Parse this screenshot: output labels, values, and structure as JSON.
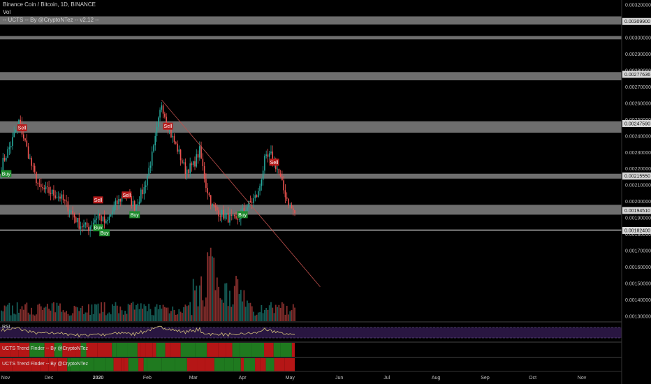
{
  "legend": {
    "symbol_line": "Binance Coin / Bitcoin, 1D, BINANCE",
    "vol_label": "Vol",
    "indicator_line": "-- UCTS -- By @CryptoNTez -- v2.12 --"
  },
  "panels": {
    "rsi_label": "RSI",
    "trend1_label": "UCTS Trend Finder -- By @CryptoNTez",
    "trend2_label": "UCTS Trend Finder -- By @CryptoNTez"
  },
  "colors": {
    "background": "#000000",
    "up": "#26a69a",
    "down": "#ef5350",
    "zone": "#c8c8c8",
    "trendline": "#c0504d",
    "rsi_line": "#d4c27a",
    "rsi_band": "#3a1f5c",
    "buy": "#1e8c2e",
    "sell": "#b71c1c",
    "trend_green": "#1f7a1f",
    "trend_red": "#b51616"
  },
  "chart_data": {
    "type": "candlestick",
    "title": "Binance Coin / Bitcoin, 1D, BINANCE",
    "x_ticks": [
      "Nov",
      "Dec",
      "2020",
      "Feb",
      "Mar",
      "Apr",
      "May",
      "Jun",
      "Jul",
      "Aug",
      "Sep",
      "Oct",
      "Nov"
    ],
    "y_ticks": [
      "0.00320000",
      "0.00310000",
      "0.00300000",
      "0.00290000",
      "0.00280000",
      "0.00270000",
      "0.00260000",
      "0.00250000",
      "0.00240000",
      "0.00230000",
      "0.00220000",
      "0.00210000",
      "0.00200000",
      "0.00190000",
      "0.00180000",
      "0.00170000",
      "0.00160000",
      "0.00150000",
      "0.00140000",
      "0.00130000"
    ],
    "ylim": [
      0.00127,
      0.00323
    ],
    "price_labels": [
      "0.00309900",
      "0.00277636",
      "0.00247590",
      "0.00215550",
      "0.00194510",
      "0.00182400"
    ],
    "zones": [
      {
        "low": 0.00308,
        "high": 0.00313
      },
      {
        "low": 0.00299,
        "high": 0.00301
      },
      {
        "low": 0.00274,
        "high": 0.00279
      },
      {
        "low": 0.00242,
        "high": 0.00249
      },
      {
        "low": 0.00214,
        "high": 0.00217
      },
      {
        "low": 0.00192,
        "high": 0.00198
      },
      {
        "low": 0.00182,
        "high": 0.00183
      }
    ],
    "trendline": {
      "from": {
        "date": "2020-02-10",
        "price": 0.00262
      },
      "to": {
        "date": "2020-05-20",
        "price": 0.00148
      }
    },
    "signals": [
      {
        "label": "Sell",
        "date": "2019-11-14",
        "price": 0.00245
      },
      {
        "label": "Buy",
        "date": "2019-11-04",
        "price": 0.00217
      },
      {
        "label": "Sell",
        "date": "2020-01-01",
        "price": 0.00201
      },
      {
        "label": "Buy",
        "date": "2020-01-01",
        "price": 0.00184
      },
      {
        "label": "Buy",
        "date": "2020-01-05",
        "price": 0.00181
      },
      {
        "label": "Sell",
        "date": "2020-01-19",
        "price": 0.00204
      },
      {
        "label": "Buy",
        "date": "2020-01-24",
        "price": 0.00192
      },
      {
        "label": "Sell",
        "date": "2020-02-14",
        "price": 0.00246
      },
      {
        "label": "Buy",
        "date": "2020-04-01",
        "price": 0.00192
      },
      {
        "label": "Sell",
        "date": "2020-04-21",
        "price": 0.00224
      }
    ],
    "close_path": [
      {
        "date": "2019-11-01",
        "close": 0.00222
      },
      {
        "date": "2019-11-07",
        "close": 0.00235
      },
      {
        "date": "2019-11-12",
        "close": 0.00249
      },
      {
        "date": "2019-11-16",
        "close": 0.00236
      },
      {
        "date": "2019-11-20",
        "close": 0.00222
      },
      {
        "date": "2019-11-25",
        "close": 0.00208
      },
      {
        "date": "2019-12-01",
        "close": 0.00206
      },
      {
        "date": "2019-12-08",
        "close": 0.00203
      },
      {
        "date": "2019-12-15",
        "close": 0.00194
      },
      {
        "date": "2019-12-20",
        "close": 0.00186
      },
      {
        "date": "2019-12-26",
        "close": 0.00184
      },
      {
        "date": "2020-01-01",
        "close": 0.00192
      },
      {
        "date": "2020-01-06",
        "close": 0.00186
      },
      {
        "date": "2020-01-12",
        "close": 0.00198
      },
      {
        "date": "2020-01-18",
        "close": 0.00205
      },
      {
        "date": "2020-01-24",
        "close": 0.00197
      },
      {
        "date": "2020-01-30",
        "close": 0.00208
      },
      {
        "date": "2020-02-05",
        "close": 0.00232
      },
      {
        "date": "2020-02-10",
        "close": 0.0026
      },
      {
        "date": "2020-02-15",
        "close": 0.00243
      },
      {
        "date": "2020-02-20",
        "close": 0.00232
      },
      {
        "date": "2020-02-25",
        "close": 0.00219
      },
      {
        "date": "2020-03-01",
        "close": 0.00222
      },
      {
        "date": "2020-03-05",
        "close": 0.00231
      },
      {
        "date": "2020-03-09",
        "close": 0.0021
      },
      {
        "date": "2020-03-13",
        "close": 0.00197
      },
      {
        "date": "2020-03-18",
        "close": 0.00193
      },
      {
        "date": "2020-03-23",
        "close": 0.0019
      },
      {
        "date": "2020-03-28",
        "close": 0.00188
      },
      {
        "date": "2020-04-02",
        "close": 0.00195
      },
      {
        "date": "2020-04-07",
        "close": 0.002
      },
      {
        "date": "2020-04-11",
        "close": 0.00205
      },
      {
        "date": "2020-04-15",
        "close": 0.00225
      },
      {
        "date": "2020-04-19",
        "close": 0.00228
      },
      {
        "date": "2020-04-23",
        "close": 0.0022
      },
      {
        "date": "2020-04-27",
        "close": 0.00207
      },
      {
        "date": "2020-05-01",
        "close": 0.00197
      },
      {
        "date": "2020-05-04",
        "close": 0.00193
      }
    ]
  }
}
